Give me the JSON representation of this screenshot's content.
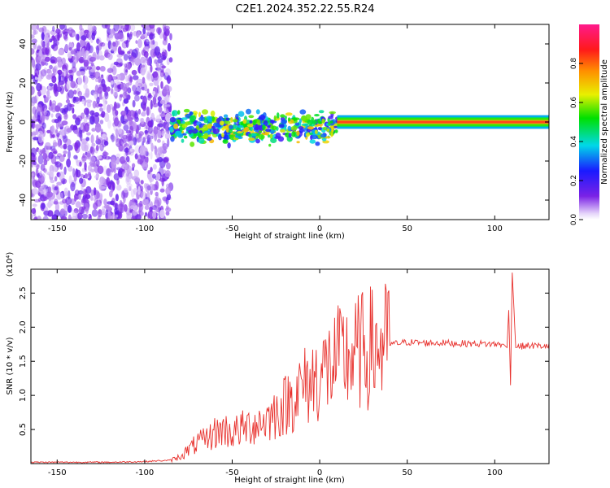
{
  "title": "C2E1.2024.352.22.55.R24",
  "colors": {
    "snr_line": "#e8322e",
    "frame": "#000000",
    "background": "#ffffff"
  },
  "chart_data": [
    {
      "type": "heatmap",
      "title": "C2E1.2024.352.22.55.R24",
      "xlabel": "Height of straight line (km)",
      "ylabel": "Frequency (Hz)",
      "xlim": [
        -165,
        131
      ],
      "ylim": [
        -50,
        50
      ],
      "x_ticks": [
        -150,
        -100,
        -50,
        0,
        50,
        100
      ],
      "y_ticks": [
        -40,
        -20,
        0,
        20,
        40
      ],
      "colorbar": {
        "label": "Normalized spectral amplitude",
        "range": [
          0.0,
          1.0
        ],
        "ticks": [
          0.0,
          0.2,
          0.4,
          0.6,
          0.8
        ],
        "colormap": "rainbow (purple-blue-cyan-green-yellow-red-magenta)"
      },
      "features": [
        {
          "x_range": [
            -165,
            -85
          ],
          "y_range": [
            -50,
            50
          ],
          "amplitude": 0.1,
          "description": "noise"
        },
        {
          "x_range": [
            -85,
            10
          ],
          "y_range": [
            -12,
            6
          ],
          "amplitude": 0.45
        },
        {
          "x_range": [
            10,
            131
          ],
          "y_range": [
            -2,
            2
          ],
          "amplitude": 0.9
        }
      ],
      "grid": false
    },
    {
      "type": "line",
      "xlabel": "Height of straight line (km)",
      "ylabel": "SNR (10 * v/v)",
      "y_scale_label": "(x10⁴)",
      "xlim": [
        -165,
        131
      ],
      "ylim": [
        0,
        2.85
      ],
      "x_ticks": [
        -150,
        -100,
        -50,
        0,
        50,
        100
      ],
      "y_ticks": [
        0.5,
        1.0,
        1.5,
        2.0,
        2.5
      ],
      "series": [
        {
          "color": "#e8322e",
          "x": [
            -165,
            -140,
            -120,
            -100,
            -85,
            -80,
            -75,
            -70,
            -65,
            -60,
            -55,
            -50,
            -45,
            -40,
            -35,
            -30,
            -25,
            -20,
            -15,
            -10,
            -5,
            0,
            5,
            10,
            15,
            20,
            25,
            30,
            40,
            50,
            60,
            70,
            80,
            90,
            100,
            105,
            107,
            108,
            109,
            110,
            112,
            115,
            120,
            131
          ],
          "y": [
            0.02,
            0.02,
            0.02,
            0.03,
            0.05,
            0.1,
            0.2,
            0.3,
            0.35,
            0.45,
            0.5,
            0.45,
            0.5,
            0.55,
            0.6,
            0.65,
            0.75,
            0.85,
            1.0,
            1.1,
            1.2,
            1.3,
            1.4,
            1.5,
            1.55,
            1.6,
            1.65,
            1.7,
            1.75,
            1.78,
            1.77,
            1.77,
            1.76,
            1.76,
            1.75,
            1.75,
            1.7,
            2.25,
            1.15,
            2.8,
            1.7,
            1.72,
            1.73,
            1.72
          ]
        }
      ],
      "grid": false
    }
  ]
}
